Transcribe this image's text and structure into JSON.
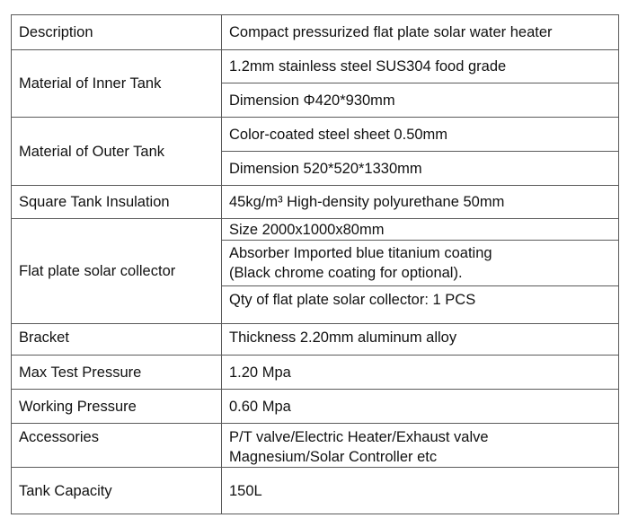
{
  "rows": {
    "description": {
      "label": "Description",
      "value": "Compact pressurized flat plate solar water heater"
    },
    "inner_tank": {
      "label": "Material of Inner Tank",
      "values": [
        "1.2mm stainless steel SUS304 food grade",
        "Dimension Φ420*930mm"
      ]
    },
    "outer_tank": {
      "label": "Material of Outer Tank",
      "values": [
        "Color-coated steel sheet 0.50mm",
        "Dimension 520*520*1330mm"
      ]
    },
    "insulation": {
      "label": "Square Tank Insulation",
      "value": "45kg/m³ High-density polyurethane 50mm"
    },
    "collector": {
      "label": "Flat plate solar collector",
      "values": [
        "Size 2000x1000x80mm",
        "Absorber Imported blue titanium coating",
        "(Black chrome coating for optional).",
        "Qty of flat plate solar collector: 1 PCS"
      ]
    },
    "bracket": {
      "label": "Bracket",
      "value": "Thickness 2.20mm aluminum alloy"
    },
    "max_pressure": {
      "label": "Max Test Pressure",
      "value": "1.20 Mpa"
    },
    "working_pressure": {
      "label": "Working Pressure",
      "value": "0.60 Mpa"
    },
    "accessories": {
      "label": "Accessories",
      "values": [
        "P/T valve/Electric Heater/Exhaust valve",
        "Magnesium/Solar Controller etc"
      ]
    },
    "capacity": {
      "label": "Tank Capacity",
      "value": "150L"
    }
  }
}
